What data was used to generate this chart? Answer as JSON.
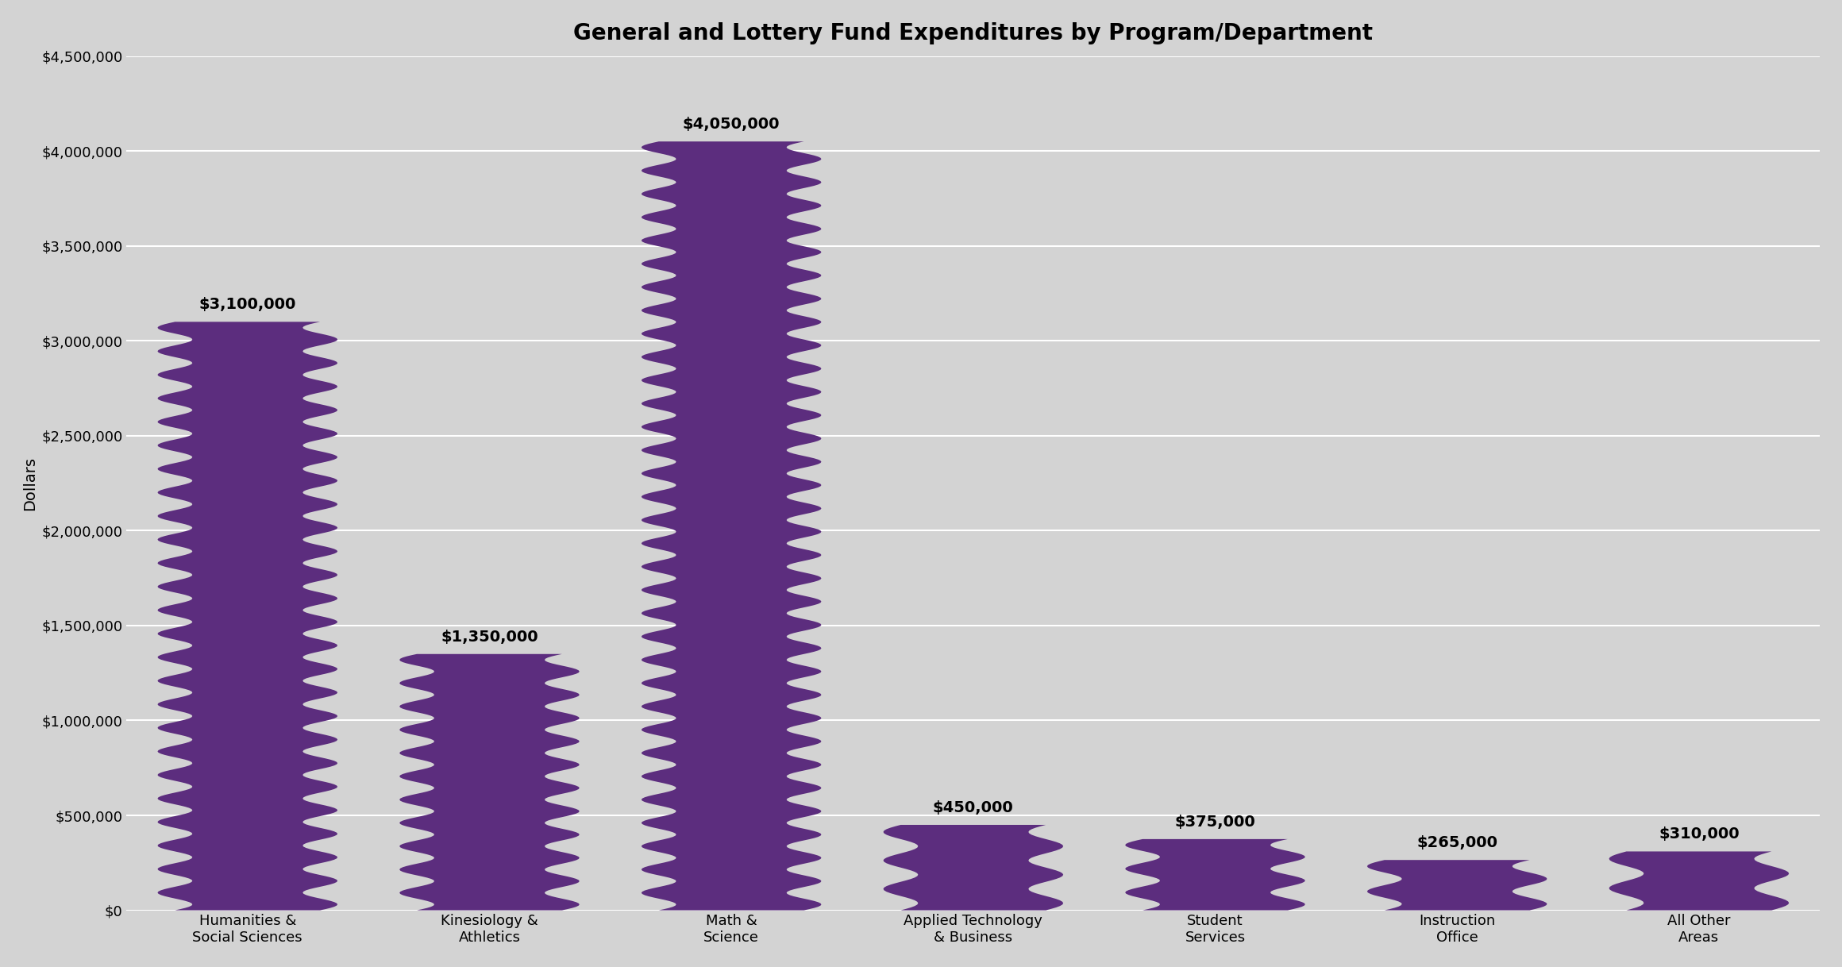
{
  "title": "General and Lottery Fund Expenditures by Program/Department",
  "categories": [
    "Humanities &\nSocial Sciences",
    "Kinesiology &\nAthletics",
    "Math &\nScience",
    "Applied Technology\n& Business",
    "Student\nServices",
    "Instruction\nOffice",
    "All Other\nAreas"
  ],
  "values": [
    3100000,
    1350000,
    4050000,
    450000,
    375000,
    265000,
    310000
  ],
  "bar_color": "#5c2d7e",
  "background_color": "#d3d3d3",
  "plot_bg_color": "#d3d3d3",
  "ylabel": "Dollars",
  "ylim": [
    0,
    4500000
  ],
  "yticks": [
    0,
    500000,
    1000000,
    1500000,
    2000000,
    2500000,
    3000000,
    3500000,
    4000000,
    4500000
  ],
  "ytick_labels": [
    "$0",
    "$500,000",
    "$1,000,000",
    "$1,500,000",
    "$2,000,000",
    "$2,500,000",
    "$3,000,000",
    "$3,500,000",
    "$4,000,000",
    "$4,500,000"
  ],
  "value_labels": [
    "$3,100,000",
    "$1,350,000",
    "$4,050,000",
    "$450,000",
    "$375,000",
    "$265,000",
    "$310,000"
  ],
  "title_fontsize": 20,
  "label_fontsize": 14,
  "tick_fontsize": 13,
  "value_label_fontsize": 14,
  "bar_width": 0.6,
  "zigzag_amplitude": 0.04,
  "zigzag_wavelength": 120000,
  "grid_color": "#bbbbbb",
  "grid_linewidth": 1.5
}
